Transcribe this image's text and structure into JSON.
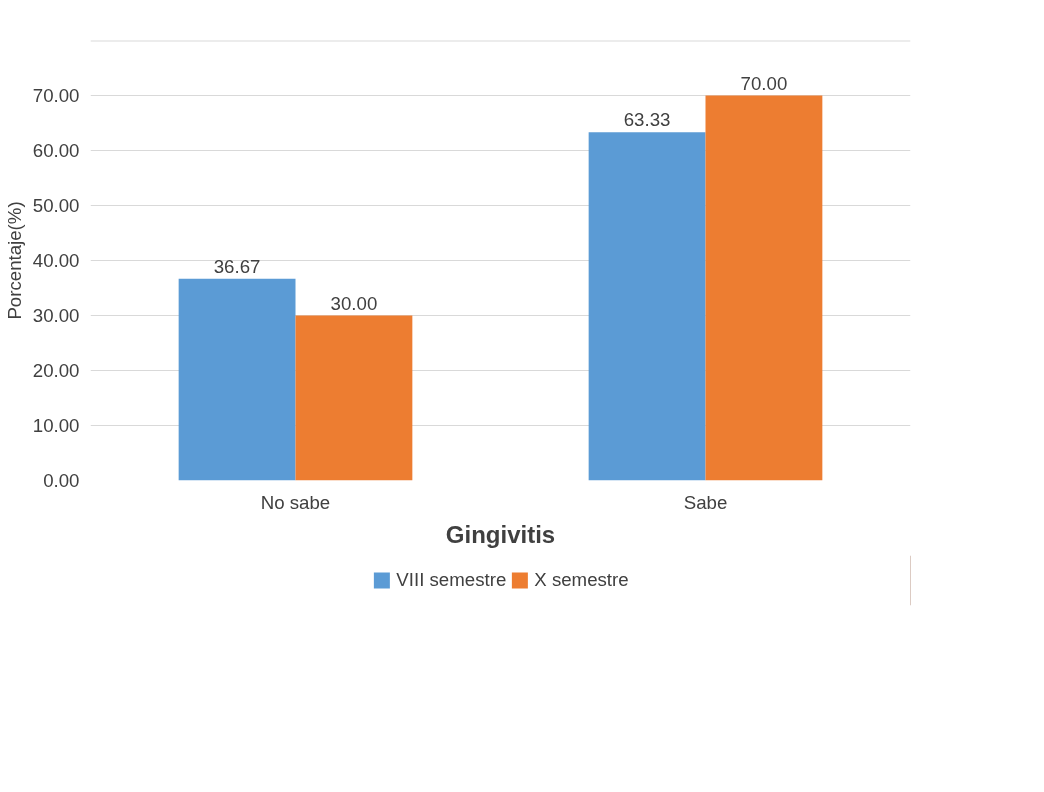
{
  "chart_data": {
    "type": "bar",
    "xlabel": "Gingivitis",
    "ylabel": "Porcentaje(%)",
    "categories": [
      "No sabe",
      "Sabe"
    ],
    "series": [
      {
        "name": "VIII semestre",
        "color": "#5b9bd5",
        "values": [
          36.67,
          63.33
        ],
        "value_labels": [
          "36.67",
          "63.33"
        ]
      },
      {
        "name": "X semestre",
        "color": "#ed7d31",
        "values": [
          30.0,
          70.0
        ],
        "value_labels": [
          "30.00",
          "70.00"
        ]
      }
    ],
    "ylim": [
      0,
      80
    ],
    "yticks": [
      {
        "value": 0,
        "label": "0.00"
      },
      {
        "value": 10,
        "label": "10.00"
      },
      {
        "value": 20,
        "label": "20.00"
      },
      {
        "value": 30,
        "label": "30.00"
      },
      {
        "value": 40,
        "label": "40.00"
      },
      {
        "value": 50,
        "label": "50.00"
      },
      {
        "value": 60,
        "label": "60.00"
      },
      {
        "value": 70,
        "label": "70.00"
      },
      {
        "value": 80,
        "label": null
      }
    ],
    "grid": "y",
    "legend": "bottom"
  }
}
